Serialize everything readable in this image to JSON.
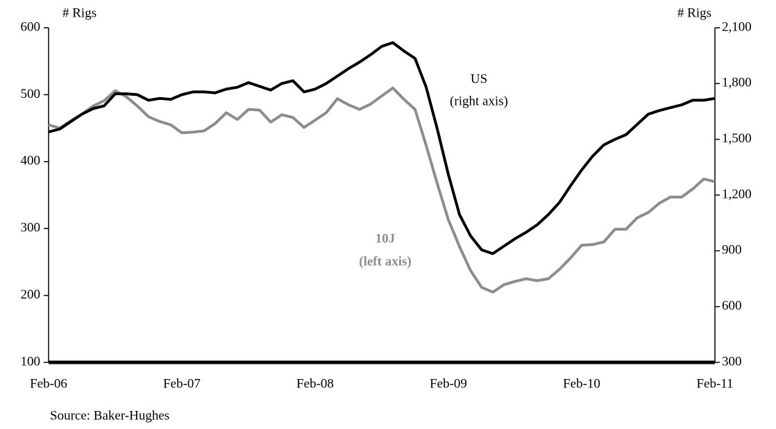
{
  "chart_data": {
    "type": "line",
    "left_axis_label": "# Rigs",
    "right_axis_label": "# Rigs",
    "source": "Source: Baker-Hughes",
    "categories": [
      "Feb-06",
      null,
      null,
      null,
      null,
      null,
      null,
      null,
      null,
      null,
      null,
      null,
      "Feb-07",
      null,
      null,
      null,
      null,
      null,
      null,
      null,
      null,
      null,
      null,
      null,
      "Feb-08",
      null,
      null,
      null,
      null,
      null,
      null,
      null,
      null,
      null,
      null,
      null,
      "Feb-09",
      null,
      null,
      null,
      null,
      null,
      null,
      null,
      null,
      null,
      null,
      null,
      "Feb-10",
      null,
      null,
      null,
      null,
      null,
      null,
      null,
      null,
      null,
      null,
      null,
      "Feb-11"
    ],
    "ylim": [
      100,
      600
    ],
    "yticks": [
      100,
      200,
      300,
      400,
      500,
      600
    ],
    "y2lim": [
      300,
      2100
    ],
    "y2ticks": [
      {
        "value": 300,
        "label": "300"
      },
      {
        "value": 600,
        "label": "600"
      },
      {
        "value": 900,
        "label": "900"
      },
      {
        "value": 1200,
        "label": "1,200"
      },
      {
        "value": 1500,
        "label": "1,500"
      },
      {
        "value": 1800,
        "label": "1,800"
      },
      {
        "value": 2100,
        "label": "2,100"
      }
    ],
    "series": [
      {
        "name": "US",
        "annotation": "(right axis)",
        "color": "#000000",
        "axis": "y2",
        "values": [
          1540,
          1555,
          1595,
          1635,
          1665,
          1680,
          1745,
          1745,
          1740,
          1710,
          1720,
          1715,
          1740,
          1755,
          1755,
          1750,
          1770,
          1780,
          1805,
          1785,
          1765,
          1800,
          1815,
          1755,
          1770,
          1800,
          1840,
          1880,
          1915,
          1955,
          2000,
          2020,
          1975,
          1935,
          1780,
          1555,
          1310,
          1095,
          980,
          905,
          885,
          925,
          965,
          1000,
          1040,
          1095,
          1160,
          1250,
          1335,
          1410,
          1470,
          1500,
          1525,
          1580,
          1635,
          1655,
          1670,
          1685,
          1710,
          1710,
          1720
        ]
      },
      {
        "name": "10J",
        "annotation": "(left axis)",
        "color": "#8c8c8c",
        "axis": "y",
        "values": [
          455,
          450,
          461,
          471,
          483,
          491,
          506,
          497,
          483,
          467,
          460,
          455,
          443,
          444,
          446,
          457,
          473,
          463,
          478,
          477,
          459,
          470,
          466,
          451,
          462,
          473,
          494,
          485,
          478,
          486,
          498,
          510,
          493,
          478,
          424,
          367,
          313,
          273,
          237,
          212,
          205,
          216,
          221,
          225,
          222,
          225,
          239,
          256,
          275,
          276,
          280,
          299,
          299,
          316,
          324,
          338,
          347,
          347,
          359,
          374,
          370
        ]
      }
    ]
  }
}
